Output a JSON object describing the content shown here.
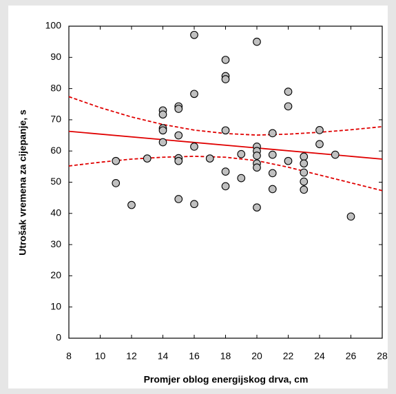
{
  "chart_data": {
    "type": "scatter",
    "x_label": "Promjer oblog energijskog drva, cm",
    "y_label": "Utrošak vremena za cijepanje, s",
    "xlim": [
      8,
      28
    ],
    "ylim": [
      0,
      100
    ],
    "xticks": [
      8,
      10,
      12,
      14,
      16,
      18,
      20,
      22,
      24,
      26,
      28
    ],
    "yticks": [
      0,
      10,
      20,
      30,
      40,
      50,
      60,
      70,
      80,
      90,
      100
    ],
    "grid": false,
    "series": [
      {
        "type": "scatter",
        "color": "#c0c0c0",
        "x": [
          11,
          11,
          12,
          13,
          14,
          14,
          14,
          14,
          14,
          15,
          15,
          15,
          15,
          15,
          15,
          16,
          16,
          16,
          16,
          17,
          18,
          18,
          18,
          18,
          18,
          18,
          19,
          19,
          20,
          20,
          20,
          20,
          20,
          20,
          20,
          21,
          21,
          21,
          21,
          22,
          22,
          22,
          23,
          23,
          23,
          23,
          23,
          24,
          24,
          25,
          26
        ],
        "values": [
          56.8,
          49.7,
          42.7,
          57.6,
          73,
          71.7,
          67.3,
          66.6,
          62.8,
          74.3,
          73.5,
          65,
          57.7,
          56.8,
          44.6,
          97.2,
          78.3,
          61.4,
          43,
          57.6,
          89.2,
          84,
          83,
          66.6,
          53.4,
          48.7,
          59,
          51.3,
          95,
          61.4,
          60,
          58.5,
          56,
          54.7,
          41.9,
          65.7,
          58.8,
          52.9,
          47.8,
          79,
          74.3,
          56.8,
          58.2,
          56,
          53.1,
          50.2,
          47.6,
          66.7,
          62.2,
          58.8,
          39
        ]
      },
      {
        "type": "line",
        "color": "#e00000",
        "dashed": false,
        "x": [
          8,
          28
        ],
        "values": [
          66.3,
          57.4
        ]
      },
      {
        "type": "line",
        "color": "#e00000",
        "dashed": true,
        "x": [
          8,
          10,
          12,
          14,
          16,
          18,
          20,
          22,
          24,
          26,
          28
        ],
        "values": [
          77.4,
          73.9,
          70.9,
          68.5,
          66.7,
          65.6,
          65.1,
          65.4,
          66.0,
          66.8,
          67.8
        ]
      },
      {
        "type": "line",
        "color": "#e00000",
        "dashed": true,
        "x": [
          8,
          10,
          12,
          14,
          16,
          18,
          20,
          22,
          24,
          26,
          28
        ],
        "values": [
          55.2,
          56.4,
          57.4,
          58.0,
          58.3,
          58.0,
          56.9,
          54.8,
          52.3,
          49.8,
          47.3
        ]
      }
    ]
  }
}
